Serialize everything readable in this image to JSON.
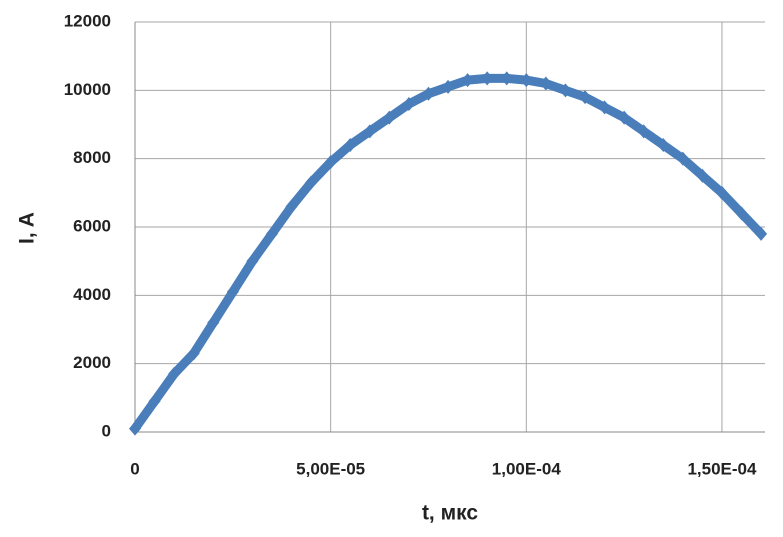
{
  "chart_data": {
    "type": "line",
    "x_label": "t, мкс",
    "y_label": "I, A",
    "x": [
      0,
      5e-06,
      1e-05,
      1.5e-05,
      2e-05,
      2.5e-05,
      3e-05,
      3.5e-05,
      4e-05,
      4.5e-05,
      5e-05,
      5.5e-05,
      6e-05,
      6.5e-05,
      7e-05,
      7.5e-05,
      8e-05,
      8.5e-05,
      9e-05,
      9.5e-05,
      0.0001,
      0.000105,
      0.00011,
      0.000115,
      0.00012,
      0.000125,
      0.00013,
      0.000135,
      0.00014,
      0.000145,
      0.00015,
      0.000155,
      0.00016
    ],
    "series": [
      {
        "color": "#4a7ebb",
        "values": [
          100,
          900,
          1700,
          2300,
          3200,
          4100,
          5000,
          5800,
          6600,
          7300,
          7900,
          8400,
          8800,
          9200,
          9600,
          9900,
          10100,
          10300,
          10350,
          10350,
          10300,
          10200,
          10000,
          9800,
          9500,
          9200,
          8800,
          8400,
          8000,
          7500,
          7000,
          6400,
          5800
        ]
      }
    ],
    "xlim": [
      0,
      0.000161
    ],
    "ylim": [
      0,
      12000
    ],
    "xticks": [
      0,
      {
        "value": 5e-05,
        "label": "5,00E-05"
      },
      {
        "value": 0.0001,
        "label": "1,00E-04"
      },
      {
        "value": 0.00015,
        "label": "1,50E-04"
      }
    ],
    "yticks": [
      0,
      2000,
      4000,
      6000,
      8000,
      10000,
      12000
    ],
    "grid": true
  }
}
